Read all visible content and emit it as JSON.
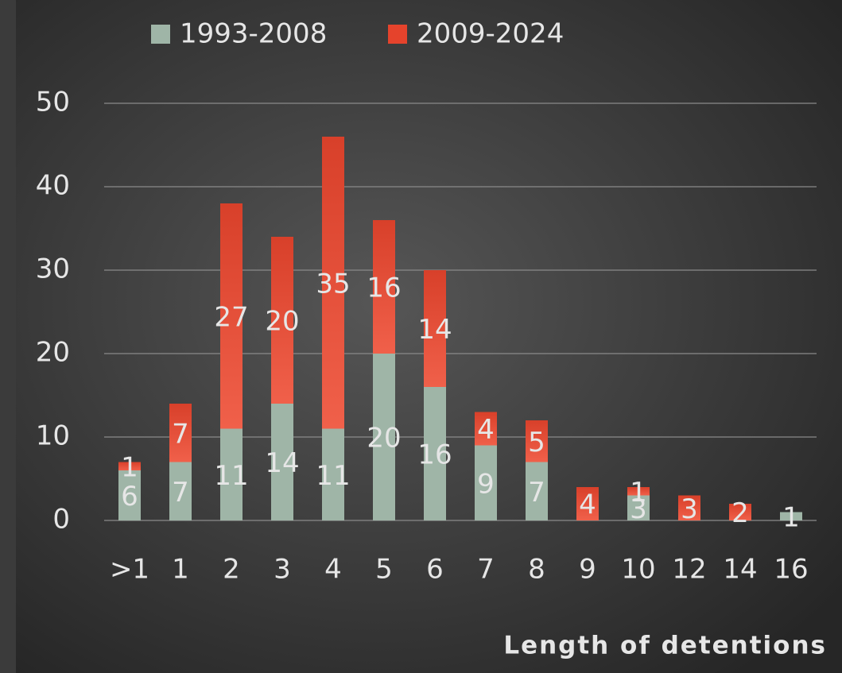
{
  "chart_data": {
    "type": "stacked_bar",
    "x_label": "Length of detentions",
    "categories": [
      ">1",
      "1",
      "2",
      "3",
      "4",
      "5",
      "6",
      "7",
      "8",
      "9",
      "10",
      "12",
      "14",
      "16"
    ],
    "series": [
      {
        "name": "1993-2008",
        "color": "#9fb5a7",
        "values": [
          6,
          7,
          11,
          14,
          11,
          20,
          16,
          9,
          7,
          null,
          3,
          null,
          null,
          1
        ]
      },
      {
        "name": "2009-2024",
        "color": "#e5432c",
        "values": [
          1,
          7,
          27,
          20,
          35,
          16,
          14,
          4,
          5,
          4,
          1,
          3,
          2,
          null
        ]
      }
    ],
    "ylim": [
      0,
      50
    ],
    "yticks": [
      0,
      10,
      20,
      30,
      40,
      50
    ],
    "grid": true,
    "legend": "top"
  }
}
